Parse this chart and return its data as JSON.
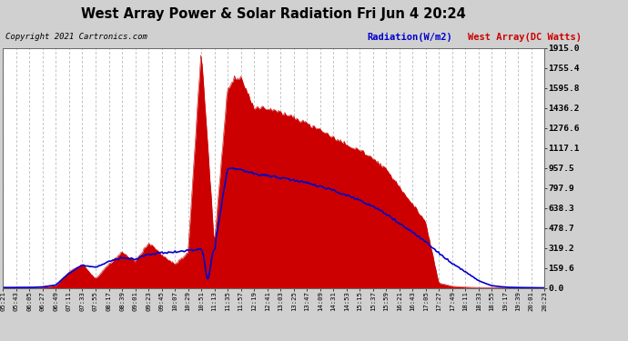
{
  "title": "West Array Power & Solar Radiation Fri Jun 4 20:24",
  "copyright": "Copyright 2021 Cartronics.com",
  "legend_radiation": "Radiation(W/m2)",
  "legend_west": "West Array(DC Watts)",
  "yticks": [
    0.0,
    159.6,
    319.2,
    478.7,
    638.3,
    797.9,
    957.5,
    1117.1,
    1276.6,
    1436.2,
    1595.8,
    1755.4,
    1915.0
  ],
  "ymax": 1915.0,
  "ymin": 0.0,
  "bg_color": "#d0d0d0",
  "plot_bg_color": "#ffffff",
  "grid_color": "#aaaaaa",
  "red_color": "#cc0000",
  "blue_color": "#0000cc",
  "time_labels": [
    "05:21",
    "05:43",
    "06:05",
    "06:27",
    "06:49",
    "07:11",
    "07:33",
    "07:55",
    "08:17",
    "08:39",
    "09:01",
    "09:23",
    "09:45",
    "10:07",
    "10:29",
    "10:51",
    "11:13",
    "11:35",
    "11:57",
    "12:19",
    "12:41",
    "13:03",
    "13:25",
    "13:47",
    "14:09",
    "14:31",
    "14:53",
    "15:15",
    "15:37",
    "15:59",
    "16:21",
    "16:43",
    "17:05",
    "17:27",
    "17:49",
    "18:11",
    "18:33",
    "18:55",
    "19:17",
    "19:39",
    "20:01",
    "20:23"
  ]
}
